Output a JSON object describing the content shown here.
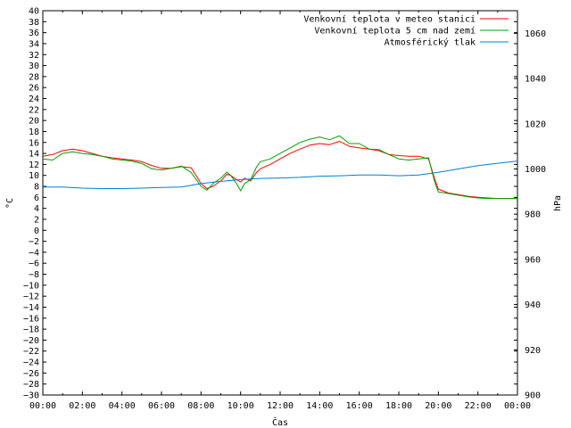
{
  "chart_data": {
    "type": "line",
    "title": "",
    "xlabel": "Čas",
    "ylabel": "°C",
    "y2label": "hPa",
    "xlim": [
      0,
      24
    ],
    "ylim": [
      -30,
      40
    ],
    "y2lim": [
      900,
      1070
    ],
    "x_ticks": [
      "00:00",
      "02:00",
      "04:00",
      "06:00",
      "08:00",
      "10:00",
      "12:00",
      "14:00",
      "16:00",
      "18:00",
      "20:00",
      "22:00",
      "00:00"
    ],
    "y_ticks": [
      40,
      38,
      36,
      34,
      32,
      30,
      28,
      26,
      24,
      22,
      20,
      18,
      16,
      14,
      12,
      10,
      8,
      6,
      4,
      2,
      0,
      -2,
      -4,
      -6,
      -8,
      -10,
      -12,
      -14,
      -16,
      -18,
      -20,
      -22,
      -24,
      -26,
      -28,
      -30
    ],
    "y_tick_labels": [
      "40",
      "38",
      "36",
      "34",
      "32",
      "30",
      "28",
      "26",
      "24",
      "22",
      "20",
      "18",
      "16",
      "14",
      "12",
      "10",
      "8",
      "6",
      "4",
      "2",
      "0",
      "−2",
      "−4",
      "−6",
      "−8",
      "−10",
      "−12",
      "−14",
      "−16",
      "−18",
      "−20",
      "−22",
      "−24",
      "−26",
      "−28",
      "−30"
    ],
    "y2_ticks": [
      1060,
      1040,
      1020,
      1000,
      980,
      960,
      940,
      920,
      900
    ],
    "grid": false,
    "legend_position": "top-right",
    "series": [
      {
        "name": "Venkovní teplota v meteo stanici",
        "axis": "left",
        "color": "#ff0000",
        "x": [
          0,
          0.5,
          1,
          1.5,
          2,
          2.5,
          3,
          3.5,
          4,
          4.5,
          5,
          5.5,
          6,
          6.5,
          7,
          7.5,
          8,
          8.3,
          8.6,
          9,
          9.3,
          9.5,
          9.8,
          10,
          10.2,
          10.5,
          10.8,
          11,
          11.5,
          12,
          12.5,
          13,
          13.5,
          14,
          14.5,
          15,
          15.5,
          16,
          16.5,
          17,
          17.5,
          18,
          18.5,
          19,
          19.5,
          19.8,
          20,
          20.5,
          21,
          21.5,
          22,
          22.5,
          23,
          23.5,
          24
        ],
        "y": [
          13.5,
          13.8,
          14.5,
          14.8,
          14.5,
          14.0,
          13.5,
          13.2,
          13.0,
          12.8,
          12.5,
          11.8,
          11.3,
          11.3,
          11.6,
          11.4,
          8.5,
          7.6,
          8.0,
          9.0,
          10.2,
          10.0,
          9.2,
          8.8,
          9.5,
          9.0,
          10.5,
          11.2,
          12.0,
          13.0,
          14.0,
          14.8,
          15.5,
          15.8,
          15.6,
          16.2,
          15.3,
          15.0,
          14.8,
          14.5,
          13.8,
          13.6,
          13.5,
          13.5,
          13.0,
          9.5,
          7.5,
          6.8,
          6.5,
          6.2,
          6.0,
          5.9,
          5.8,
          5.8,
          5.8
        ]
      },
      {
        "name": "Venkovní teplota 5 cm nad zemí",
        "axis": "left",
        "color": "#00a000",
        "x": [
          0,
          0.5,
          1,
          1.5,
          2,
          2.5,
          3,
          3.5,
          4,
          4.5,
          5,
          5.5,
          6,
          6.5,
          7,
          7.5,
          8,
          8.3,
          8.6,
          9,
          9.3,
          9.5,
          9.8,
          10,
          10.2,
          10.5,
          10.8,
          11,
          11.5,
          12,
          12.5,
          13,
          13.5,
          14,
          14.5,
          15,
          15.5,
          16,
          16.5,
          17,
          17.5,
          18,
          18.5,
          19,
          19.5,
          19.8,
          20,
          20.5,
          21,
          21.5,
          22,
          22.5,
          23,
          23.5,
          24
        ],
        "y": [
          13.0,
          12.8,
          14.0,
          14.3,
          14.0,
          13.8,
          13.5,
          13.0,
          12.8,
          12.6,
          12.2,
          11.2,
          11.0,
          11.3,
          11.7,
          10.5,
          8.0,
          7.3,
          8.5,
          9.5,
          10.6,
          10.0,
          8.5,
          7.2,
          8.5,
          9.2,
          11.5,
          12.5,
          13.0,
          14.0,
          15.0,
          16.0,
          16.6,
          17.0,
          16.5,
          17.2,
          15.8,
          15.8,
          14.8,
          14.7,
          13.8,
          13.0,
          12.8,
          13.0,
          13.2,
          9.0,
          7.0,
          6.7,
          6.4,
          6.1,
          5.9,
          5.8,
          5.8,
          5.8,
          5.8
        ]
      },
      {
        "name": "Atmosférický tlak",
        "axis": "right",
        "color": "#0080d0",
        "x": [
          0,
          1,
          2,
          3,
          4,
          5,
          6,
          7,
          8,
          9,
          10,
          11,
          12,
          13,
          14,
          15,
          16,
          17,
          18,
          19,
          20,
          21,
          22,
          23,
          24
        ],
        "y": [
          992.0,
          992.0,
          991.5,
          991.3,
          991.3,
          991.5,
          991.8,
          992.0,
          993.5,
          994.5,
          995.3,
          995.8,
          996.0,
          996.3,
          996.8,
          997.0,
          997.3,
          997.3,
          997.0,
          997.3,
          998.5,
          1000.0,
          1001.5,
          1002.5,
          1003.5
        ]
      }
    ]
  }
}
